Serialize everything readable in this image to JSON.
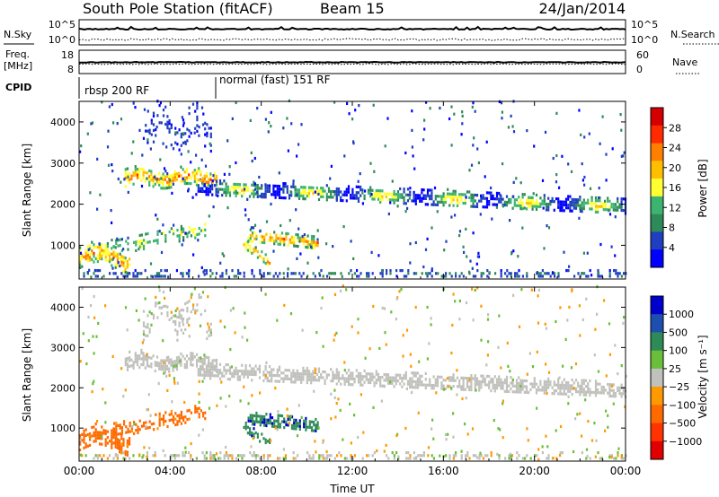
{
  "header": {
    "station": "South Pole Station (fitACF)",
    "beam": "Beam 15",
    "date": "24/Jan/2014"
  },
  "strip_labels": {
    "nsky": "N.Sky",
    "nsearch": "N.Search",
    "freq": "Freq.",
    "freq_unit": "[MHz]",
    "nave": "Nave",
    "cpid": "CPID",
    "ticks_nsky_top": "10^5",
    "ticks_nsky_bottom": "10^0",
    "ticks_freq_top": "18",
    "ticks_freq_bottom": "8",
    "ticks_nave_top": "60",
    "ticks_nave_bottom": "0"
  },
  "cpid_segments": [
    {
      "start_hour": 0,
      "label": "rbsp 200 RF"
    },
    {
      "start_hour": 6,
      "label": "normal (fast) 151 RF"
    }
  ],
  "chart_data": [
    {
      "type": "heatmap",
      "name": "power",
      "xlabel": "",
      "ylabel": "Slant Range [km]",
      "x_ticks": [
        "00:00",
        "04:00",
        "08:00",
        "12:00",
        "16:00",
        "20:00",
        "00:00"
      ],
      "x_range_hours": [
        0,
        24
      ],
      "ylim": [
        180,
        4500
      ],
      "y_ticks": [
        1000,
        2000,
        3000,
        4000
      ],
      "colorbar_label": "Power [dB]",
      "colorbar_ticks": [
        "28",
        "24",
        "20",
        "16",
        "12",
        "8",
        "4"
      ],
      "colorbar_colors": [
        "#d40000",
        "#ff2a00",
        "#ff7f00",
        "#ffbf00",
        "#ffff33",
        "#3cb371",
        "#2e8b57",
        "#1f3fbf",
        "#0000ff"
      ]
    },
    {
      "type": "heatmap",
      "name": "velocity",
      "xlabel": "Time UT",
      "ylabel": "Slant Range [km]",
      "x_ticks": [
        "00:00",
        "04:00",
        "08:00",
        "12:00",
        "16:00",
        "20:00",
        "00:00"
      ],
      "x_range_hours": [
        0,
        24
      ],
      "ylim": [
        180,
        4500
      ],
      "y_ticks": [
        1000,
        2000,
        3000,
        4000
      ],
      "colorbar_label": "Velocity [m s⁻¹]",
      "colorbar_ticks": [
        "1000",
        "500",
        "100",
        "25",
        "−25",
        "−100",
        "−500",
        "−1000"
      ],
      "colorbar_colors": [
        "#0000cd",
        "#1e4fb0",
        "#2e8b57",
        "#6abf3a",
        "#c0c0bc",
        "#ff9900",
        "#ff6a00",
        "#ff3300",
        "#e00000"
      ]
    }
  ]
}
